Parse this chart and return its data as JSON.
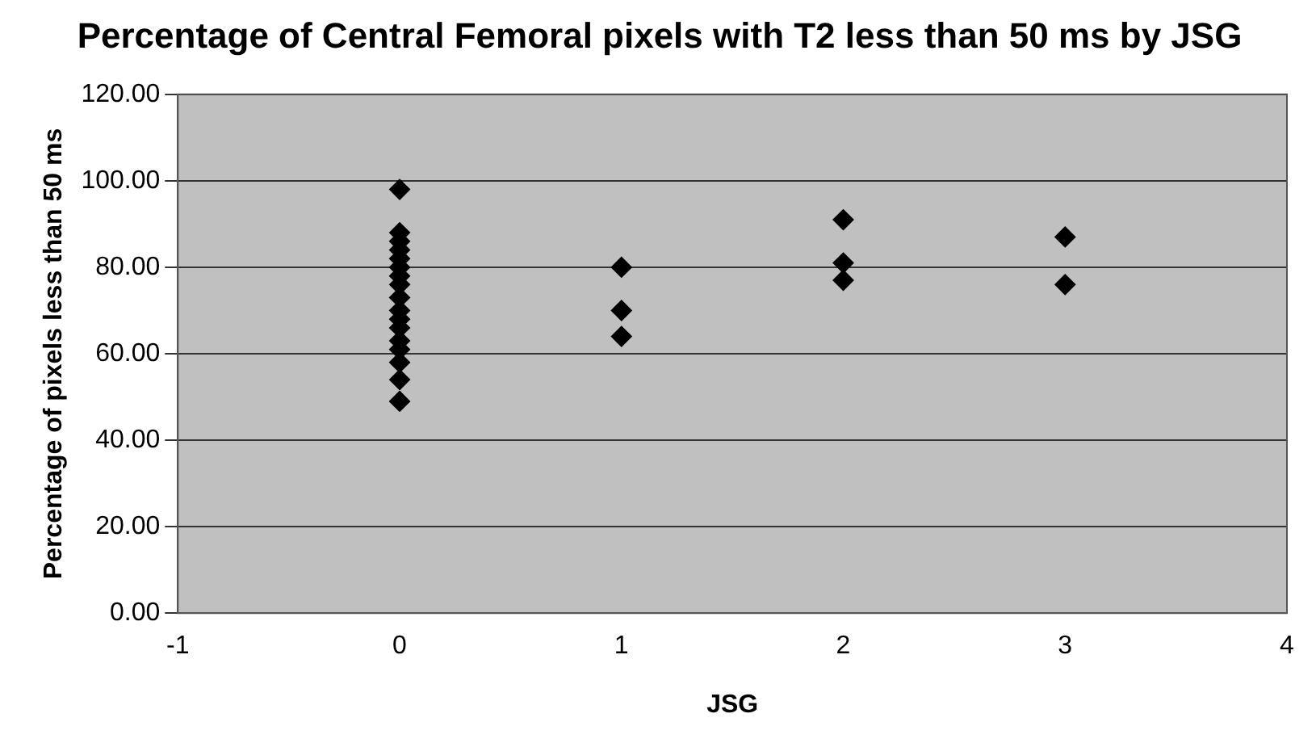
{
  "chart_data": {
    "type": "scatter",
    "title": "Percentage of Central Femoral pixels with T2 less than 50 ms by JSG",
    "xlabel": "JSG",
    "ylabel": "Percentage of pixels less than 50 ms",
    "x": [
      0,
      0,
      0,
      0,
      0,
      0,
      0,
      0,
      0,
      0,
      0,
      0,
      0,
      0,
      0,
      0,
      0,
      1,
      1,
      1,
      2,
      2,
      2,
      3,
      3
    ],
    "values": [
      98,
      88,
      86,
      84,
      82,
      80,
      78,
      76,
      73,
      70,
      68,
      66,
      63,
      61,
      58,
      54,
      49,
      80,
      70,
      64,
      91,
      81,
      77,
      87,
      76
    ],
    "color": "#000000",
    "marker": "diamond",
    "xlim": [
      -1,
      4
    ],
    "xticks": [
      -1,
      0,
      1,
      2,
      3,
      4
    ],
    "ylim": [
      0,
      120
    ],
    "yticks": [
      {
        "value": 0,
        "label": "0.00"
      },
      {
        "value": 20,
        "label": "20.00"
      },
      {
        "value": 40,
        "label": "40.00"
      },
      {
        "value": 60,
        "label": "60.00"
      },
      {
        "value": 80,
        "label": "80.00"
      },
      {
        "value": 100,
        "label": "100.00"
      },
      {
        "value": 120,
        "label": "120.00"
      }
    ],
    "grid": "y",
    "legend": false
  }
}
